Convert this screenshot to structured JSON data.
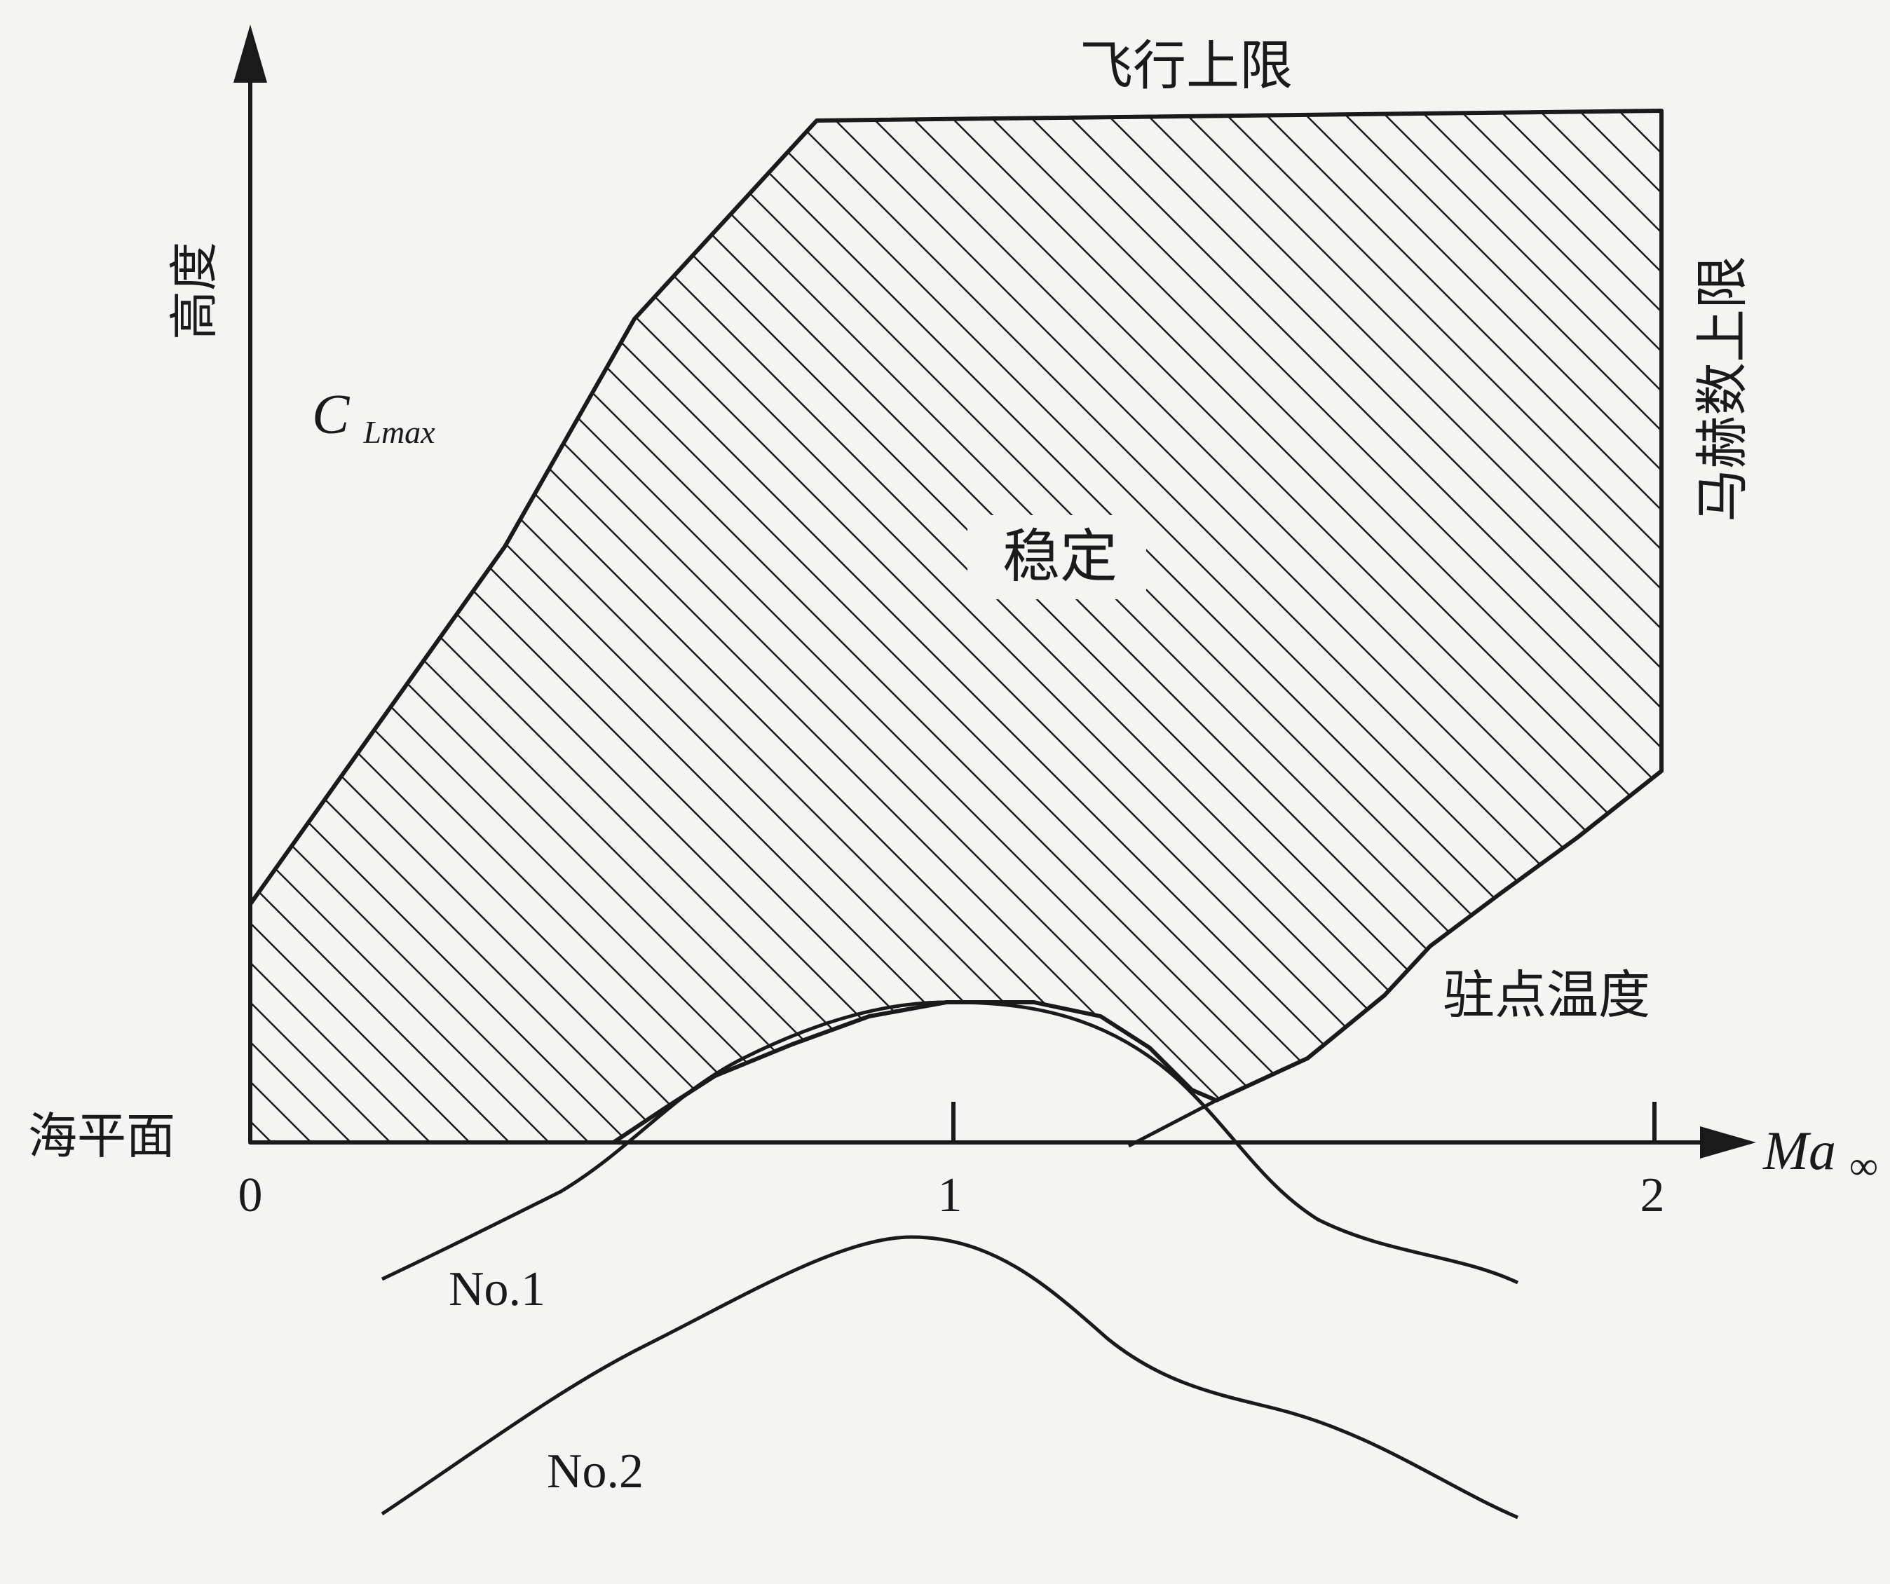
{
  "figure": {
    "y_axis_label": "高度",
    "x_axis_label_main": "Ma",
    "x_axis_label_sub": "∞",
    "sea_level_label": "海平面",
    "x_ticks": [
      "0",
      "1",
      "2"
    ],
    "region_label": "稳定",
    "boundary_labels": {
      "cl_max_main": "C",
      "cl_max_sub": "Lmax",
      "flight_ceiling": "飞行上限",
      "mach_limit": "马赫数上限",
      "stagnation_temperature": "驻点温度"
    },
    "curve_labels": {
      "no1": "No.1",
      "no2": "No.2"
    },
    "colors": {
      "ink": "#1a1a1a",
      "paper": "#f4f4f2"
    }
  }
}
